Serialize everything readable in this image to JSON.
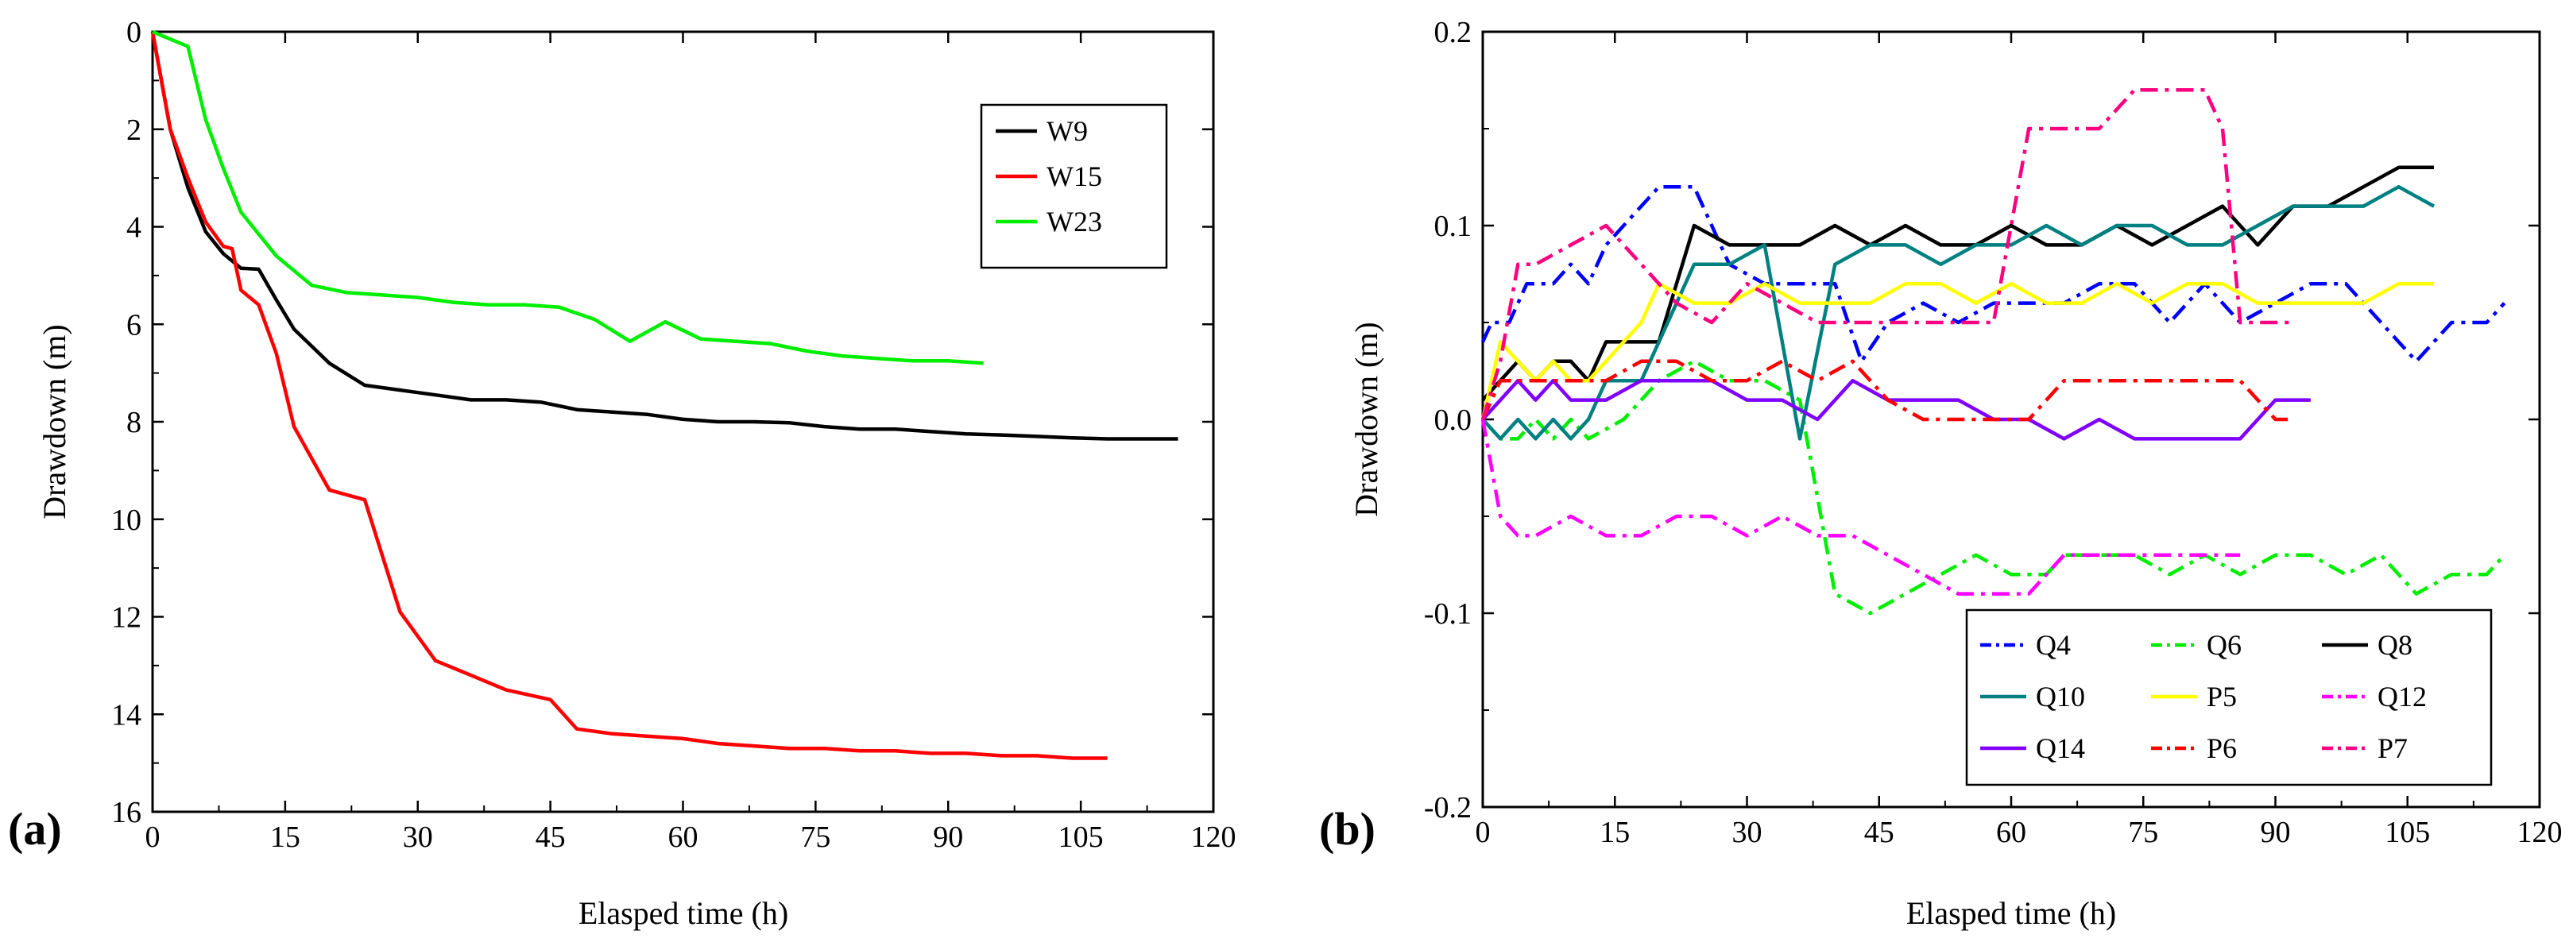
{
  "chart_data": [
    {
      "id": "a",
      "panel_label": "(a)",
      "type": "line",
      "xlabel": "Elasped time (h)",
      "ylabel": "Drawdown (m)",
      "xlim": [
        0,
        120
      ],
      "ylim": [
        16,
        0
      ],
      "y_inverted": true,
      "xticks": [
        0,
        15,
        30,
        45,
        60,
        75,
        90,
        105,
        120
      ],
      "xtick_labels": [
        "0",
        "15",
        "30",
        "45",
        "60",
        "75",
        "90",
        "105",
        "120"
      ],
      "yticks": [
        0,
        2,
        4,
        6,
        8,
        10,
        12,
        14,
        16
      ],
      "ytick_labels": [
        "0",
        "2",
        "4",
        "6",
        "8",
        "10",
        "12",
        "14",
        "16"
      ],
      "legend_position": "top-right",
      "series": [
        {
          "name": "W9",
          "color": "#000000",
          "dash": "solid",
          "x": [
            0,
            2,
            4,
            6,
            8,
            10,
            12,
            14,
            16,
            20,
            24,
            28,
            32,
            36,
            40,
            44,
            48,
            52,
            56,
            60,
            64,
            68,
            72,
            76,
            80,
            84,
            88,
            92,
            96,
            100,
            104,
            108,
            112,
            116
          ],
          "y": [
            0,
            2.0,
            3.2,
            4.1,
            4.55,
            4.85,
            4.87,
            5.5,
            6.1,
            6.8,
            7.25,
            7.35,
            7.45,
            7.55,
            7.55,
            7.6,
            7.75,
            7.8,
            7.85,
            7.95,
            8.0,
            8.0,
            8.02,
            8.1,
            8.15,
            8.15,
            8.2,
            8.25,
            8.27,
            8.3,
            8.33,
            8.35,
            8.35,
            8.35
          ]
        },
        {
          "name": "W15",
          "color": "#ff0000",
          "dash": "solid",
          "x": [
            0,
            2,
            4,
            6,
            8,
            9,
            10,
            12,
            14,
            16,
            20,
            24,
            28,
            32,
            36,
            40,
            45,
            48,
            52,
            56,
            60,
            64,
            68,
            72,
            76,
            80,
            84,
            88,
            92,
            96,
            100,
            104,
            108
          ],
          "y": [
            0,
            2.0,
            3.0,
            3.9,
            4.4,
            4.45,
            5.3,
            5.6,
            6.6,
            8.1,
            9.4,
            9.6,
            11.9,
            12.9,
            13.2,
            13.5,
            13.7,
            14.3,
            14.4,
            14.45,
            14.5,
            14.6,
            14.65,
            14.7,
            14.7,
            14.75,
            14.75,
            14.8,
            14.8,
            14.85,
            14.85,
            14.9,
            14.9
          ]
        },
        {
          "name": "W23",
          "color": "#00ee00",
          "dash": "solid",
          "x": [
            0,
            4,
            6,
            8,
            10,
            14,
            18,
            22,
            26,
            30,
            34,
            38,
            42,
            46,
            50,
            54,
            58,
            62,
            66,
            70,
            74,
            78,
            82,
            86,
            90,
            94
          ],
          "y": [
            0,
            0.3,
            1.8,
            2.8,
            3.7,
            4.6,
            5.2,
            5.35,
            5.4,
            5.45,
            5.55,
            5.6,
            5.6,
            5.65,
            5.9,
            6.35,
            5.95,
            6.3,
            6.35,
            6.4,
            6.55,
            6.65,
            6.7,
            6.75,
            6.75,
            6.8
          ]
        }
      ]
    },
    {
      "id": "b",
      "panel_label": "(b)",
      "type": "line",
      "xlabel": "Elasped time (h)",
      "ylabel": "Drawdown (m)",
      "xlim": [
        0,
        120
      ],
      "ylim": [
        -0.2,
        0.2
      ],
      "xticks": [
        0,
        15,
        30,
        45,
        60,
        75,
        90,
        105,
        120
      ],
      "xtick_labels": [
        "0",
        "15",
        "30",
        "45",
        "60",
        "75",
        "90",
        "105",
        "120"
      ],
      "yticks": [
        0.2,
        0.1,
        0.0,
        -0.1,
        -0.2
      ],
      "ytick_labels": [
        "0.2",
        "0.1",
        "0.0",
        "-0.1",
        "-0.2"
      ],
      "legend_position": "bottom-right",
      "series": [
        {
          "name": "Q4",
          "color": "#0000ff",
          "dash": "dashdot",
          "x": [
            0,
            1,
            3,
            5,
            8,
            10,
            12,
            14,
            18,
            20,
            24,
            26,
            28,
            32,
            36,
            40,
            43,
            46,
            50,
            54,
            58,
            62,
            66,
            70,
            74,
            78,
            82,
            86,
            90,
            94,
            98,
            102,
            106,
            110,
            114,
            116
          ],
          "y": [
            0.04,
            0.05,
            0.05,
            0.07,
            0.07,
            0.08,
            0.07,
            0.09,
            0.11,
            0.12,
            0.12,
            0.1,
            0.08,
            0.07,
            0.07,
            0.07,
            0.03,
            0.05,
            0.06,
            0.05,
            0.06,
            0.06,
            0.06,
            0.07,
            0.07,
            0.05,
            0.07,
            0.05,
            0.06,
            0.07,
            0.07,
            0.05,
            0.03,
            0.05,
            0.05,
            0.06
          ]
        },
        {
          "name": "Q6",
          "color": "#00ee00",
          "dash": "dashdot",
          "x": [
            0,
            2,
            4,
            6,
            8,
            10,
            12,
            16,
            20,
            24,
            28,
            32,
            36,
            38,
            40,
            44,
            48,
            52,
            56,
            60,
            64,
            66,
            70,
            74,
            78,
            82,
            86,
            90,
            94,
            98,
            102,
            106,
            110,
            114,
            116
          ],
          "y": [
            0.0,
            -0.01,
            -0.01,
            0.0,
            -0.01,
            0.0,
            -0.01,
            0.0,
            0.02,
            0.03,
            0.02,
            0.02,
            0.01,
            -0.04,
            -0.09,
            -0.1,
            -0.09,
            -0.08,
            -0.07,
            -0.08,
            -0.08,
            -0.07,
            -0.07,
            -0.07,
            -0.08,
            -0.07,
            -0.08,
            -0.07,
            -0.07,
            -0.08,
            -0.07,
            -0.09,
            -0.08,
            -0.08,
            -0.07
          ]
        },
        {
          "name": "Q8",
          "color": "#000000",
          "dash": "solid",
          "x": [
            0,
            2,
            4,
            6,
            8,
            10,
            12,
            14,
            18,
            20,
            24,
            28,
            32,
            36,
            40,
            44,
            48,
            52,
            56,
            60,
            64,
            68,
            72,
            76,
            80,
            84,
            88,
            92,
            96,
            100,
            104,
            108
          ],
          "y": [
            0.01,
            0.02,
            0.03,
            0.02,
            0.03,
            0.03,
            0.02,
            0.04,
            0.04,
            0.04,
            0.1,
            0.09,
            0.09,
            0.09,
            0.1,
            0.09,
            0.1,
            0.09,
            0.09,
            0.1,
            0.09,
            0.09,
            0.1,
            0.09,
            0.1,
            0.11,
            0.09,
            0.11,
            0.11,
            0.12,
            0.13,
            0.13
          ]
        },
        {
          "name": "Q10",
          "color": "#008080",
          "dash": "solid",
          "x": [
            0,
            2,
            4,
            6,
            8,
            10,
            12,
            14,
            16,
            18,
            20,
            24,
            28,
            32,
            36,
            40,
            44,
            48,
            52,
            56,
            60,
            64,
            68,
            72,
            76,
            80,
            84,
            88,
            92,
            96,
            100,
            104,
            108
          ],
          "y": [
            0.0,
            -0.01,
            0.0,
            -0.01,
            0.0,
            -0.01,
            0.0,
            0.02,
            0.02,
            0.02,
            0.04,
            0.08,
            0.08,
            0.09,
            -0.01,
            0.08,
            0.09,
            0.09,
            0.08,
            0.09,
            0.09,
            0.1,
            0.09,
            0.1,
            0.1,
            0.09,
            0.09,
            0.1,
            0.11,
            0.11,
            0.11,
            0.12,
            0.11
          ]
        },
        {
          "name": "P5",
          "color": "#ffff00",
          "dash": "solid",
          "x": [
            0,
            2,
            4,
            6,
            8,
            10,
            12,
            14,
            18,
            20,
            24,
            28,
            32,
            36,
            40,
            44,
            48,
            52,
            56,
            60,
            64,
            68,
            72,
            76,
            80,
            84,
            88,
            92,
            96,
            100,
            104,
            108
          ],
          "y": [
            0.0,
            0.04,
            0.03,
            0.02,
            0.03,
            0.02,
            0.02,
            0.03,
            0.05,
            0.07,
            0.06,
            0.06,
            0.07,
            0.06,
            0.06,
            0.06,
            0.07,
            0.07,
            0.06,
            0.07,
            0.06,
            0.06,
            0.07,
            0.06,
            0.07,
            0.07,
            0.06,
            0.06,
            0.06,
            0.06,
            0.07,
            0.07
          ]
        },
        {
          "name": "Q12",
          "color": "#ff00ff",
          "dash": "dashdot",
          "x": [
            0,
            2,
            4,
            6,
            8,
            10,
            14,
            18,
            22,
            26,
            30,
            32,
            34,
            38,
            42,
            46,
            50,
            54,
            58,
            62,
            66,
            70,
            74,
            78,
            82,
            86
          ],
          "y": [
            0.0,
            -0.05,
            -0.06,
            -0.06,
            -0.055,
            -0.05,
            -0.06,
            -0.06,
            -0.05,
            -0.05,
            -0.06,
            -0.055,
            -0.05,
            -0.06,
            -0.06,
            -0.07,
            -0.08,
            -0.09,
            -0.09,
            -0.09,
            -0.07,
            -0.07,
            -0.07,
            -0.07,
            -0.07,
            -0.07
          ]
        },
        {
          "name": "Q14",
          "color": "#8000ff",
          "dash": "solid",
          "x": [
            0,
            2,
            4,
            6,
            8,
            10,
            12,
            14,
            18,
            22,
            26,
            30,
            34,
            38,
            42,
            46,
            50,
            54,
            58,
            62,
            66,
            70,
            74,
            78,
            82,
            86,
            90,
            94
          ],
          "y": [
            0.0,
            0.01,
            0.02,
            0.01,
            0.02,
            0.01,
            0.01,
            0.01,
            0.02,
            0.02,
            0.02,
            0.01,
            0.01,
            0.0,
            0.02,
            0.01,
            0.01,
            0.01,
            0.0,
            0.0,
            -0.01,
            0.0,
            -0.01,
            -0.01,
            -0.01,
            -0.01,
            0.01,
            0.01
          ]
        },
        {
          "name": "P6",
          "color": "#ff0000",
          "dash": "dashdot",
          "x": [
            0,
            2,
            4,
            6,
            10,
            14,
            18,
            22,
            26,
            30,
            34,
            38,
            42,
            46,
            50,
            54,
            58,
            62,
            66,
            70,
            74,
            78,
            82,
            86,
            90,
            92
          ],
          "y": [
            0.0,
            0.02,
            0.02,
            0.02,
            0.02,
            0.02,
            0.03,
            0.03,
            0.02,
            0.02,
            0.03,
            0.02,
            0.03,
            0.01,
            0.0,
            0.0,
            0.0,
            0.0,
            0.02,
            0.02,
            0.02,
            0.02,
            0.02,
            0.02,
            0.0,
            0.0
          ]
        },
        {
          "name": "P7",
          "color": "#ff0080",
          "dash": "dashdot",
          "x": [
            0,
            2,
            4,
            6,
            10,
            14,
            18,
            22,
            26,
            30,
            34,
            38,
            42,
            46,
            50,
            54,
            58,
            60,
            62,
            66,
            70,
            72,
            74,
            78,
            82,
            84,
            86,
            88,
            92
          ],
          "y": [
            0.0,
            0.03,
            0.08,
            0.08,
            0.09,
            0.1,
            0.08,
            0.06,
            0.05,
            0.07,
            0.06,
            0.05,
            0.05,
            0.05,
            0.05,
            0.05,
            0.05,
            0.1,
            0.15,
            0.15,
            0.15,
            0.16,
            0.17,
            0.17,
            0.17,
            0.15,
            0.05,
            0.05,
            0.05
          ]
        }
      ]
    }
  ]
}
